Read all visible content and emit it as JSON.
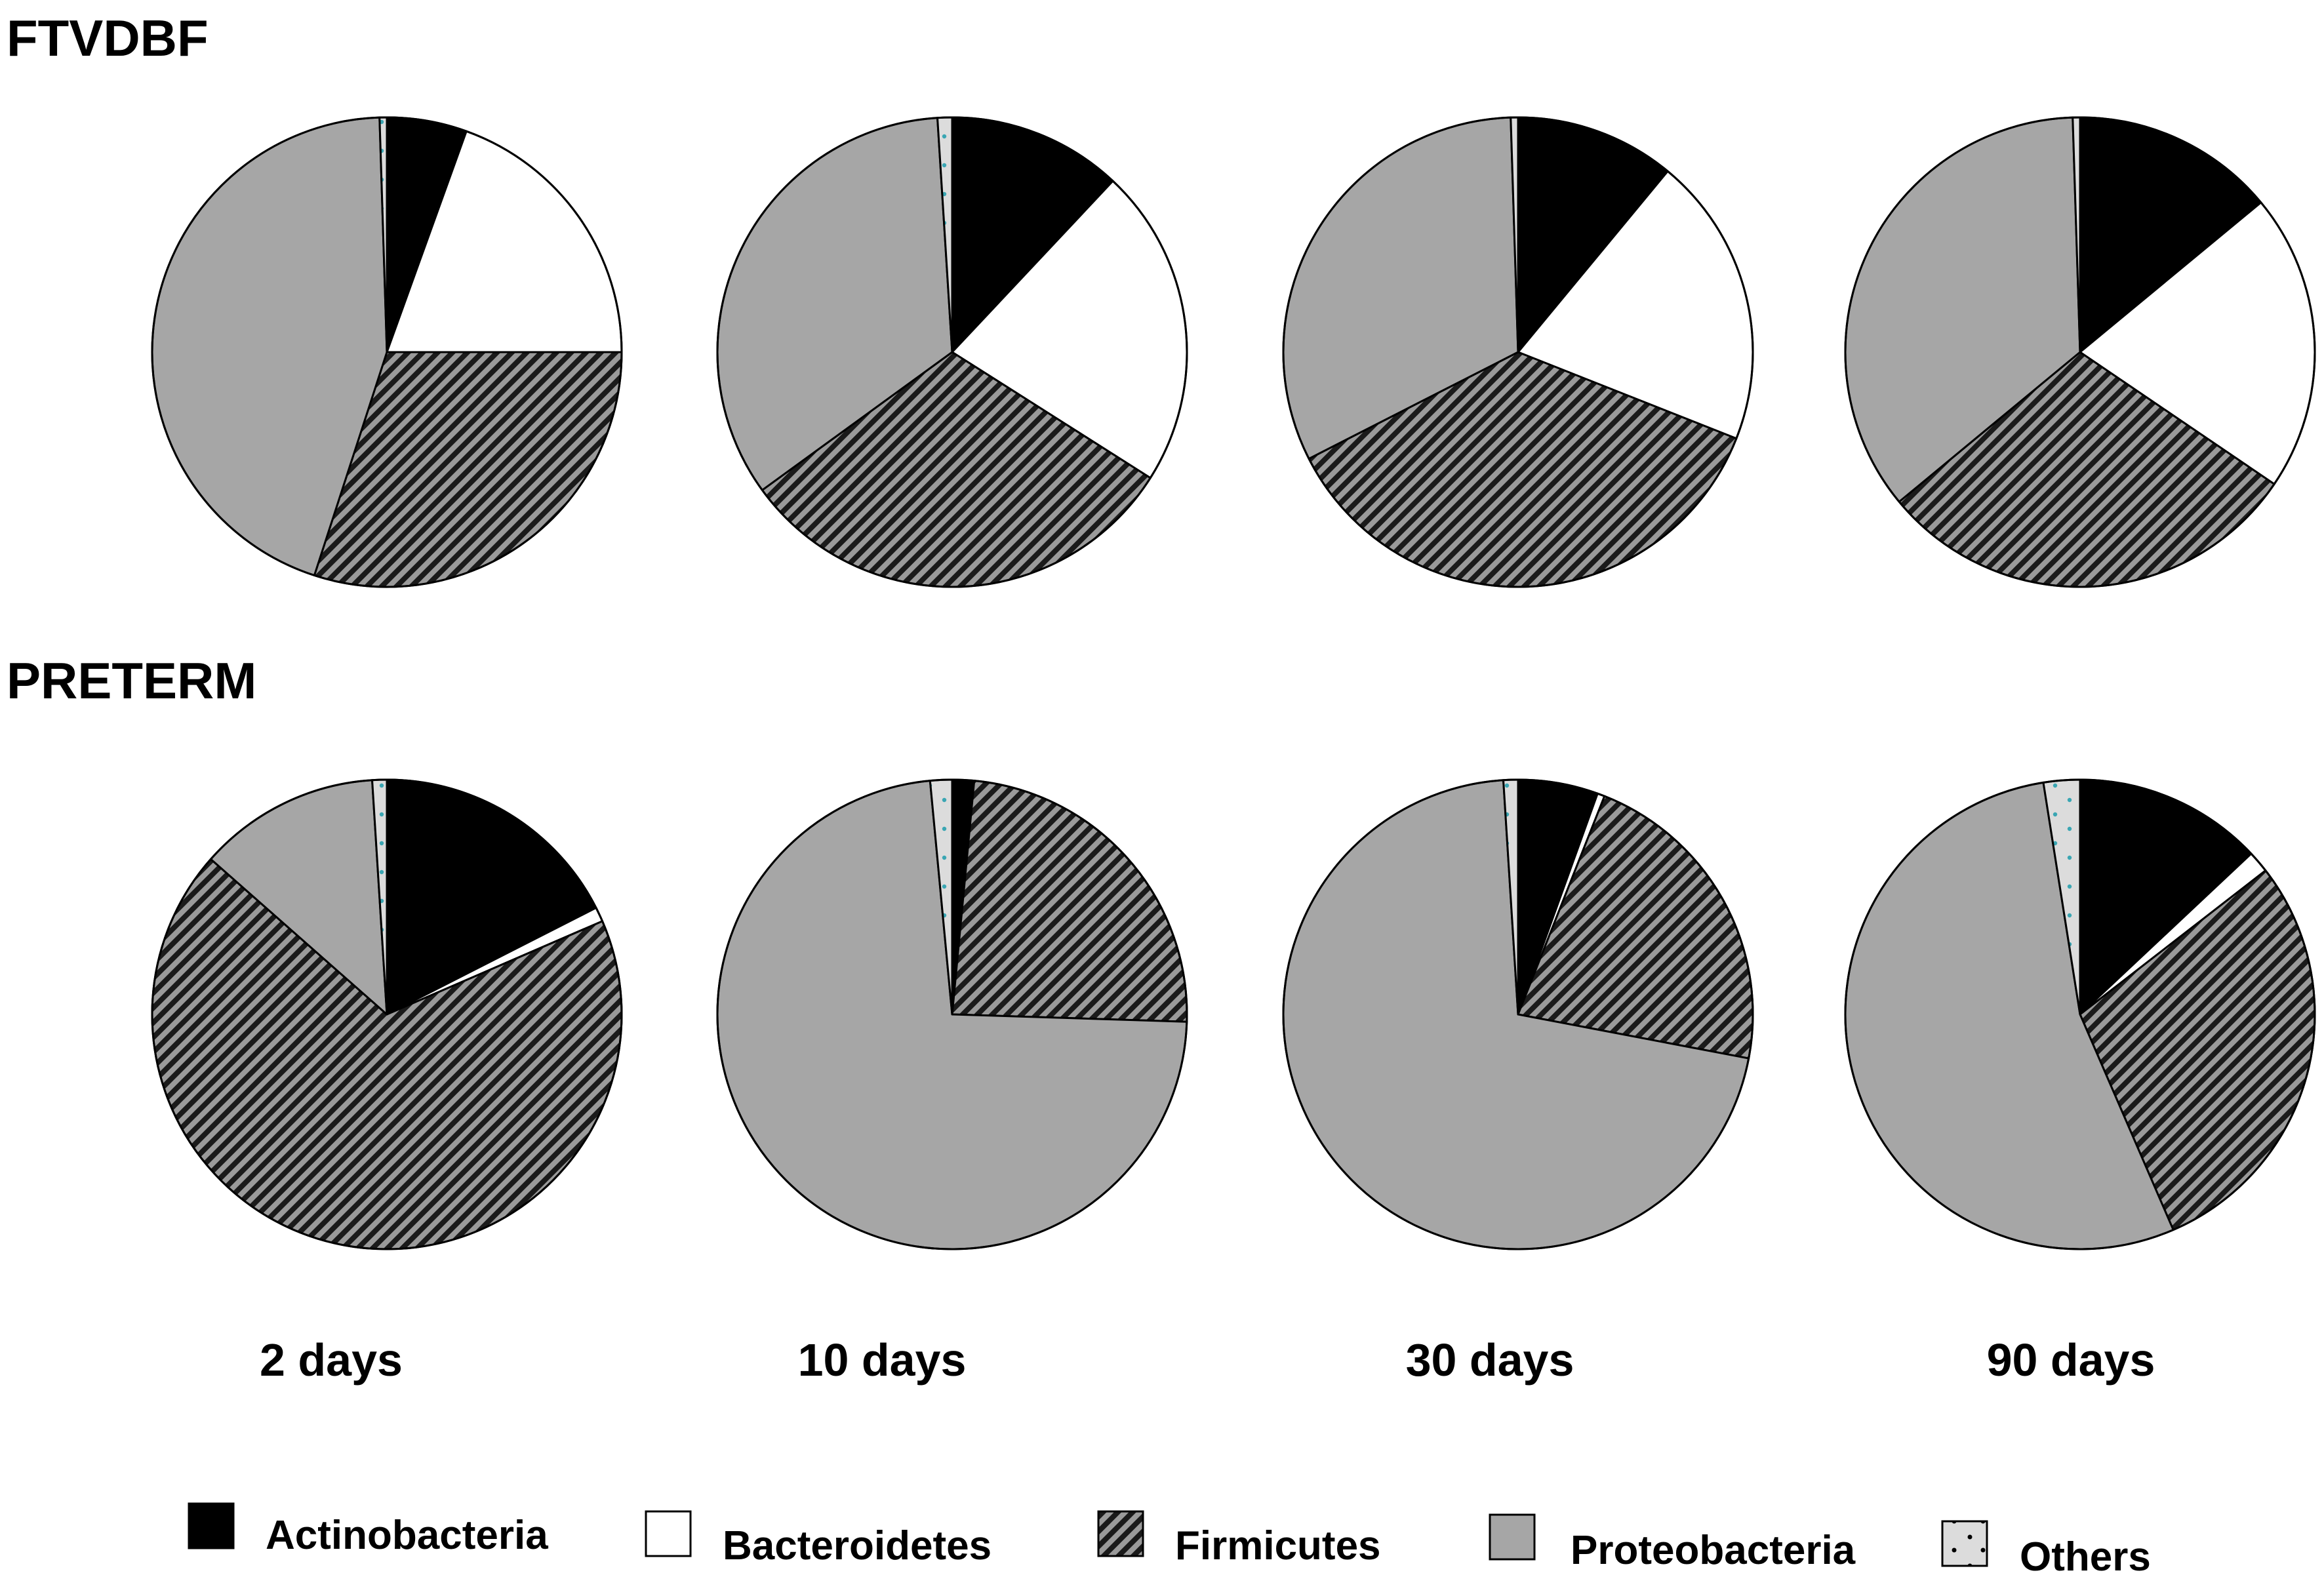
{
  "chart_data": {
    "type": "pie",
    "groups": [
      {
        "title": "FTVDBF"
      },
      {
        "title": "PRETERM"
      }
    ],
    "timepoints": [
      "2 days",
      "10 days",
      "30 days",
      "90 days"
    ],
    "legend": {
      "placement": "bottom",
      "entries": [
        {
          "name": "Actinobacteria",
          "fill": "#000000",
          "pattern": "solid"
        },
        {
          "name": "Bacteroidetes",
          "fill": "#ffffff",
          "pattern": "solid"
        },
        {
          "name": "Firmicutes",
          "fill": "#7f7f7f",
          "pattern": "diagonal-stripes"
        },
        {
          "name": "Proteobacteria",
          "fill": "#a6a6a6",
          "pattern": "solid"
        },
        {
          "name": "Others",
          "fill": "#dcdcdc",
          "pattern": "dots"
        }
      ]
    },
    "charts": [
      {
        "group": "FTVDBF",
        "timepoint": "2 days",
        "values": [
          5.5,
          19.5,
          30.0,
          44.5,
          0.5
        ]
      },
      {
        "group": "FTVDBF",
        "timepoint": "10 days",
        "values": [
          12.0,
          22.0,
          31.0,
          34.0,
          1.0
        ]
      },
      {
        "group": "FTVDBF",
        "timepoint": "30 days",
        "values": [
          11.0,
          20.0,
          36.5,
          32.0,
          0.5
        ]
      },
      {
        "group": "FTVDBF",
        "timepoint": "90 days",
        "values": [
          14.0,
          20.5,
          29.5,
          35.5,
          0.5
        ]
      },
      {
        "group": "PRETERM",
        "timepoint": "2 days",
        "values": [
          17.5,
          1.0,
          68.0,
          12.5,
          1.0
        ]
      },
      {
        "group": "PRETERM",
        "timepoint": "10 days",
        "values": [
          1.5,
          0.0,
          24.0,
          73.0,
          1.5
        ]
      },
      {
        "group": "PRETERM",
        "timepoint": "30 days",
        "values": [
          5.5,
          0.5,
          22.0,
          71.0,
          1.0
        ]
      },
      {
        "group": "PRETERM",
        "timepoint": "90 days",
        "values": [
          13.0,
          1.5,
          29.0,
          54.0,
          2.5
        ]
      }
    ]
  }
}
